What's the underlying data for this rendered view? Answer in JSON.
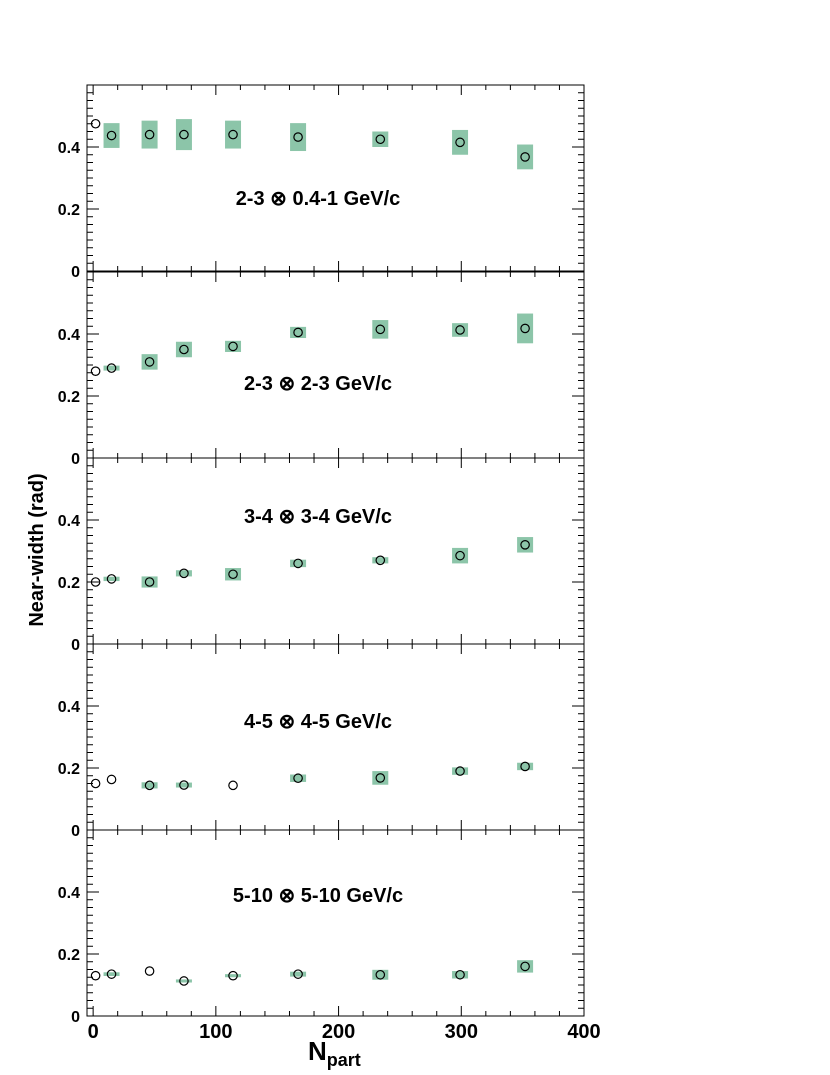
{
  "chart_data": {
    "type": "scatter",
    "xlabel_main": "N",
    "xlabel_sub": "part",
    "ylabel": "Near-width (rad)",
    "xlim": [
      -5,
      400
    ],
    "ylim": [
      0,
      0.6
    ],
    "x_ticks": [
      0,
      100,
      200,
      300,
      400
    ],
    "x_tick_labels": [
      "0",
      "100",
      "200",
      "300",
      "400"
    ],
    "y_ticks": [
      0,
      0.2,
      0.4
    ],
    "y_tick_labels": [
      "0",
      "0.2",
      "0.4"
    ],
    "colors": {
      "sys_box": "#8cc5a9",
      "marker": "#000000"
    },
    "panels": [
      {
        "label": "2-3 ⊗ 0.4-1 GeV/c",
        "points": [
          {
            "x": 2,
            "y": 0.475,
            "sys": null
          },
          {
            "x": 15,
            "y": 0.437,
            "sys": 0.04
          },
          {
            "x": 46,
            "y": 0.44,
            "sys": 0.045
          },
          {
            "x": 74,
            "y": 0.44,
            "sys": 0.05
          },
          {
            "x": 114,
            "y": 0.44,
            "sys": 0.045
          },
          {
            "x": 167,
            "y": 0.432,
            "sys": 0.045
          },
          {
            "x": 234,
            "y": 0.425,
            "sys": 0.025
          },
          {
            "x": 299,
            "y": 0.415,
            "sys": 0.04
          },
          {
            "x": 352,
            "y": 0.368,
            "sys": 0.04
          }
        ]
      },
      {
        "label": "2-3 ⊗ 2-3 GeV/c",
        "points": [
          {
            "x": 2,
            "y": 0.28,
            "sys": null
          },
          {
            "x": 15,
            "y": 0.29,
            "sys": 0.008
          },
          {
            "x": 46,
            "y": 0.31,
            "sys": 0.025
          },
          {
            "x": 74,
            "y": 0.35,
            "sys": 0.025
          },
          {
            "x": 114,
            "y": 0.36,
            "sys": 0.018
          },
          {
            "x": 167,
            "y": 0.405,
            "sys": 0.018
          },
          {
            "x": 234,
            "y": 0.415,
            "sys": 0.03
          },
          {
            "x": 299,
            "y": 0.413,
            "sys": 0.022
          },
          {
            "x": 352,
            "y": 0.418,
            "sys": 0.048
          }
        ]
      },
      {
        "label": "3-4 ⊗ 3-4 GeV/c",
        "points": [
          {
            "x": 2,
            "y": 0.2,
            "sys": null
          },
          {
            "x": 15,
            "y": 0.21,
            "sys": 0.007
          },
          {
            "x": 46,
            "y": 0.2,
            "sys": 0.018
          },
          {
            "x": 74,
            "y": 0.228,
            "sys": 0.01
          },
          {
            "x": 114,
            "y": 0.225,
            "sys": 0.02
          },
          {
            "x": 167,
            "y": 0.26,
            "sys": 0.012
          },
          {
            "x": 234,
            "y": 0.27,
            "sys": 0.01
          },
          {
            "x": 299,
            "y": 0.285,
            "sys": 0.025
          },
          {
            "x": 352,
            "y": 0.32,
            "sys": 0.025
          }
        ]
      },
      {
        "label": "4-5 ⊗ 4-5 GeV/c",
        "points": [
          {
            "x": 2,
            "y": 0.15,
            "sys": null
          },
          {
            "x": 15,
            "y": 0.163,
            "sys": null
          },
          {
            "x": 46,
            "y": 0.144,
            "sys": 0.01
          },
          {
            "x": 74,
            "y": 0.145,
            "sys": 0.008
          },
          {
            "x": 114,
            "y": 0.144,
            "sys": null
          },
          {
            "x": 167,
            "y": 0.167,
            "sys": 0.012
          },
          {
            "x": 234,
            "y": 0.168,
            "sys": 0.022
          },
          {
            "x": 299,
            "y": 0.19,
            "sys": 0.012
          },
          {
            "x": 352,
            "y": 0.205,
            "sys": 0.012
          }
        ]
      },
      {
        "label": "5-10 ⊗ 5-10 GeV/c",
        "points": [
          {
            "x": 2,
            "y": 0.13,
            "sys": null
          },
          {
            "x": 15,
            "y": 0.135,
            "sys": 0.006
          },
          {
            "x": 46,
            "y": 0.145,
            "sys": null
          },
          {
            "x": 74,
            "y": 0.113,
            "sys": 0.005
          },
          {
            "x": 114,
            "y": 0.13,
            "sys": 0.005
          },
          {
            "x": 167,
            "y": 0.135,
            "sys": 0.008
          },
          {
            "x": 234,
            "y": 0.133,
            "sys": 0.016
          },
          {
            "x": 299,
            "y": 0.133,
            "sys": 0.012
          },
          {
            "x": 352,
            "y": 0.16,
            "sys": 0.02
          }
        ]
      }
    ]
  }
}
